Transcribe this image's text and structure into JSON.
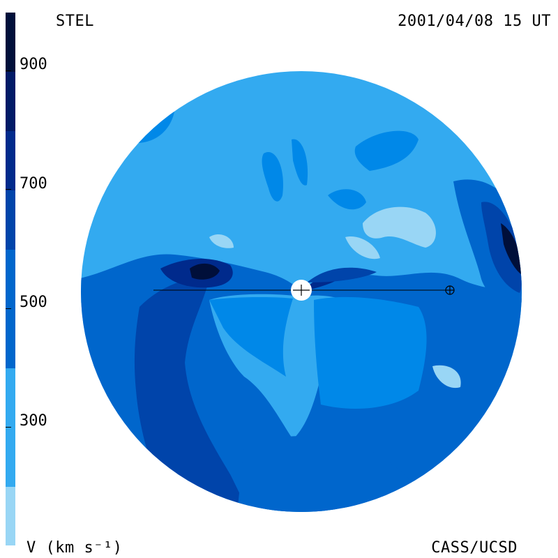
{
  "header": {
    "observatory": "STEL",
    "datetime": "2001/04/08 15 UT"
  },
  "footer": {
    "units": "V (km s⁻¹)",
    "credit": "CASS/UCSD"
  },
  "colorbar": {
    "ticks": [
      "900",
      "700",
      "500",
      "300"
    ],
    "colors": [
      "#99d6f5",
      "#33aaf0",
      "#0088e8",
      "#0066cc",
      "#0044aa",
      "#002a8c",
      "#001a66",
      "#000f3a"
    ]
  },
  "map": {
    "quantity": "solar wind velocity",
    "colors": {
      "very_light": "#99d6f5",
      "light": "#33aaf0",
      "mid": "#0088e8",
      "mid_dark": "#0066cc",
      "dark": "#0044aa",
      "darker": "#002a8c",
      "darkest": "#000f3a"
    },
    "center_marker": "sun-icon",
    "earth_marker": "earth-icon"
  }
}
